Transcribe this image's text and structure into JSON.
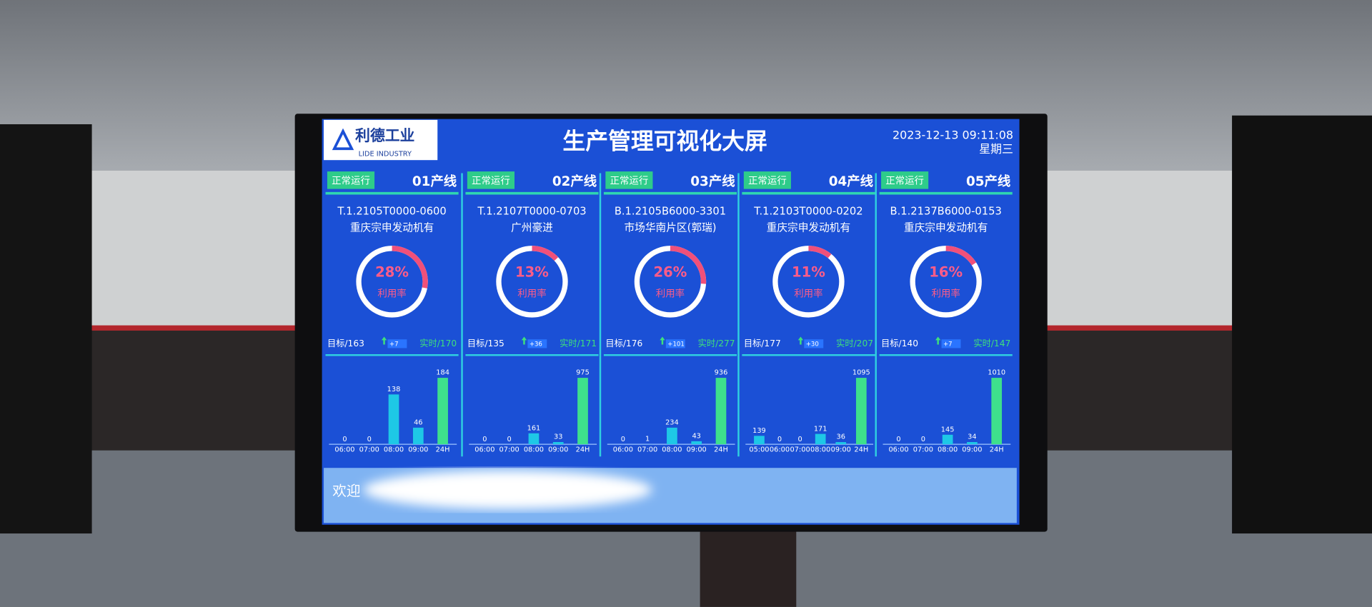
{
  "header": {
    "logo": "利德工业",
    "logo_sub": "LIDE INDUSTRY",
    "title": "生产管理可视化大屏",
    "datetime": "2023-12-13 09:11:08",
    "weekday": "星期三"
  },
  "utilization_caption": "利用率",
  "lines": [
    {
      "status": "正常运行",
      "name": "01产线",
      "code": "T.1.2105T0000-0600",
      "customer": "重庆宗申发动机有",
      "utilization": 28,
      "utilization_label": "28%",
      "target": "目标/163",
      "delta": "+7",
      "actual": "实时/170",
      "categories": [
        "06:00",
        "07:00",
        "08:00",
        "09:00",
        "24H"
      ],
      "values": [
        0,
        0,
        138,
        46,
        184
      ]
    },
    {
      "status": "正常运行",
      "name": "02产线",
      "code": "T.1.2107T0000-0703",
      "customer": "广州豪进",
      "utilization": 13,
      "utilization_label": "13%",
      "target": "目标/135",
      "delta": "+36",
      "actual": "实时/171",
      "categories": [
        "06:00",
        "07:00",
        "08:00",
        "09:00",
        "24H"
      ],
      "values": [
        0,
        0,
        161,
        33,
        975
      ]
    },
    {
      "status": "正常运行",
      "name": "03产线",
      "code": "B.1.2105B6000-3301",
      "customer": "市场华南片区(郭瑞)",
      "utilization": 26,
      "utilization_label": "26%",
      "target": "目标/176",
      "delta": "+101",
      "actual": "实时/277",
      "categories": [
        "06:00",
        "07:00",
        "08:00",
        "09:00",
        "24H"
      ],
      "values": [
        0,
        1,
        234,
        43,
        936
      ]
    },
    {
      "status": "正常运行",
      "name": "04产线",
      "code": "T.1.2103T0000-0202",
      "customer": "重庆宗申发动机有",
      "utilization": 11,
      "utilization_label": "11%",
      "target": "目标/177",
      "delta": "+30",
      "actual": "实时/207",
      "categories": [
        "05:00",
        "06:00",
        "07:00",
        "08:00",
        "09:00",
        "24H"
      ],
      "values": [
        139,
        0,
        0,
        171,
        36,
        1095
      ]
    },
    {
      "status": "正常运行",
      "name": "05产线",
      "code": "B.1.2137B6000-0153",
      "customer": "重庆宗申发动机有",
      "utilization": 16,
      "utilization_label": "16%",
      "target": "目标/140",
      "delta": "+7",
      "actual": "实时/147",
      "categories": [
        "06:00",
        "07:00",
        "08:00",
        "09:00",
        "24H"
      ],
      "values": [
        0,
        0,
        145,
        34,
        1010
      ]
    }
  ],
  "footer": {
    "welcome": "欢迎"
  }
}
